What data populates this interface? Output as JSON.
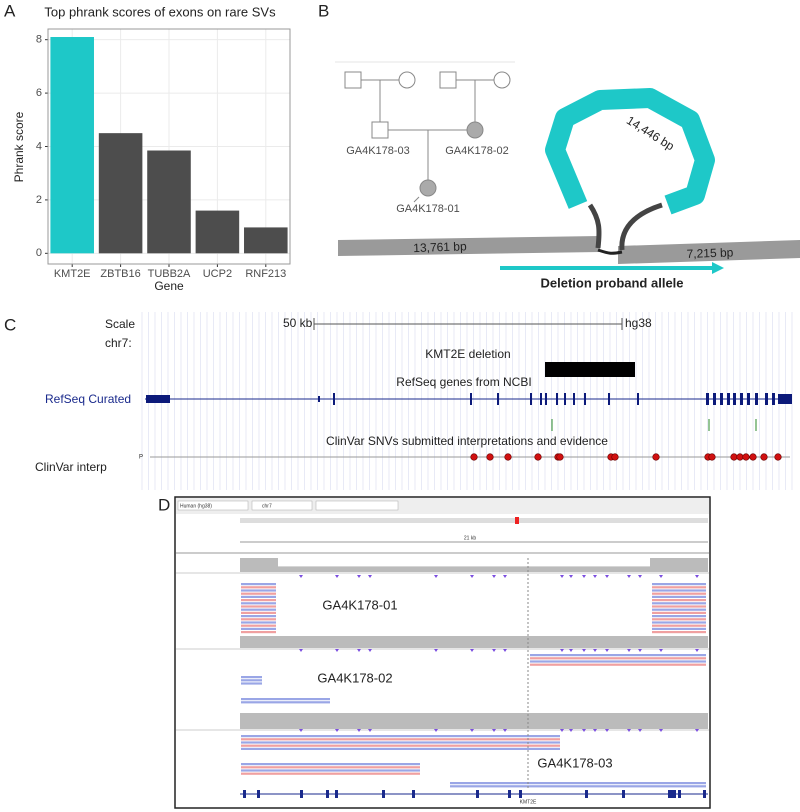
{
  "chart_data": {
    "type": "bar",
    "title": "Top phrank scores of exons on rare SVs",
    "x_label": "Gene",
    "y_label": "Phrank score",
    "categories": [
      "KMT2E",
      "ZBTB16",
      "TUBB2A",
      "UCP2",
      "RNF213"
    ],
    "values": [
      8.1,
      4.5,
      3.85,
      1.6,
      0.97
    ],
    "colors": [
      "#1ec8c8",
      "#4d4d4d",
      "#4d4d4d",
      "#4d4d4d",
      "#4d4d4d"
    ],
    "ylim": [
      -0.4,
      8.4
    ],
    "yticks": [
      0,
      2,
      4,
      6,
      8
    ],
    "grid": true
  },
  "panels": {
    "a": "A",
    "b": "B",
    "c": "C",
    "d": "D"
  },
  "pedigree": {
    "members": [
      "GA4K178-03",
      "GA4K178-02",
      "GA4K178-01"
    ]
  },
  "deletion": {
    "inserted": "14,446 bp",
    "left": "13,761 bp",
    "right": "7,215 bp",
    "caption": "Deletion proband allele"
  },
  "browser": {
    "scale": "Scale",
    "chrom": "chr7:",
    "scale_length": "50 kb",
    "assembly": "hg38",
    "deletion_track": "KMT2E deletion",
    "refseq_label": "RefSeq Curated",
    "refseq_title": "RefSeq genes from NCBI",
    "clinvar_title": "ClinVar SNVs submitted interpretations and evidence",
    "clinvar_label": "ClinVar interp",
    "clinvar_row": "P"
  },
  "igv": {
    "genome": "Human (hg38)",
    "chrom": "chr7",
    "span": "21 kb",
    "gene": "KMT2E",
    "samples": [
      "GA4K178-01",
      "GA4K178-02",
      "GA4K178-03"
    ]
  }
}
